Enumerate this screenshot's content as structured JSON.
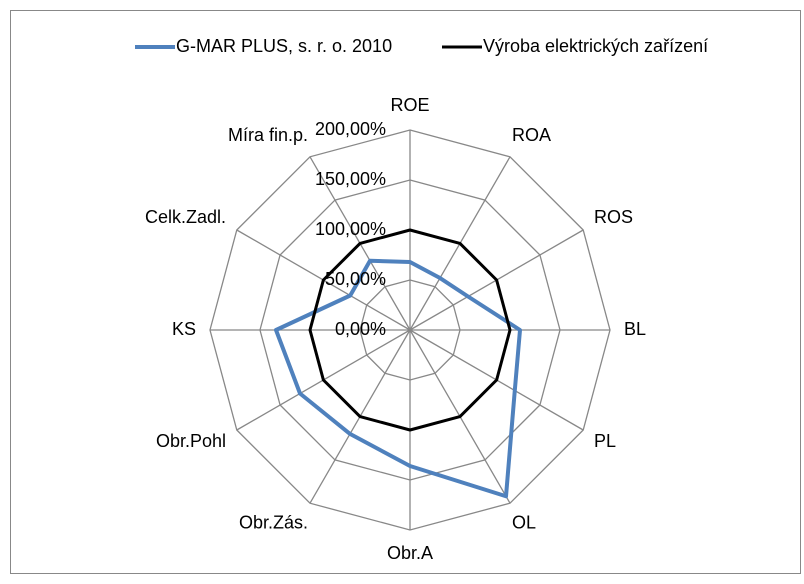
{
  "chart_data": {
    "type": "radar",
    "categories": [
      "ROE",
      "ROA",
      "ROS",
      "BL",
      "PL",
      "OL",
      "Obr.A",
      "Obr.Zás.",
      "Obr.Pohl",
      "KS",
      "Celk.Zadl.",
      "Míra fin.p."
    ],
    "series": [
      {
        "name": "G-MAR PLUS, s. r. o. 2010",
        "color": "#4f81bd",
        "values": [
          68,
          60,
          67,
          110,
          121,
          192,
          136,
          120,
          127,
          134,
          69,
          80
        ]
      },
      {
        "name": "Výroba elektrických zařízení",
        "color": "#000000",
        "values": [
          100,
          100,
          100,
          100,
          100,
          100,
          100,
          100,
          100,
          100,
          100,
          100
        ]
      }
    ],
    "ylim": [
      0,
      200
    ],
    "yticks": [
      {
        "value": 0,
        "label": "0,00%"
      },
      {
        "value": 50,
        "label": "50,00%"
      },
      {
        "value": 100,
        "label": "100,00%"
      },
      {
        "value": 150,
        "label": "150,00%"
      },
      {
        "value": 200,
        "label": "200,00%"
      }
    ],
    "grid": true,
    "legend": "top"
  }
}
